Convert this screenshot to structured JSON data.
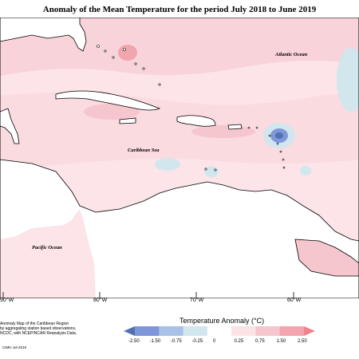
{
  "title": "Anomaly of the Mean Temperature for the period July 2018 to June 2019",
  "ocean_labels": {
    "atlantic": "Atlantic Ocean",
    "caribbean": "Caribbean Sea",
    "pacific": "Pacific Ocean"
  },
  "longitude_labels": [
    "90°W",
    "80°W",
    "70°W",
    "60°W"
  ],
  "credits": {
    "lines": [
      "Anomaly Map of the Caribbean Region",
      "by aggregating station based observations,",
      "NCDC, with NCEP/NCAR Reanalysis Data."
    ],
    "id": "CIMH Jul-2019"
  },
  "legend": {
    "title": "Temperature Anomaly (°C)",
    "ticks": [
      "-2.50",
      "-1.50",
      "-0.75",
      "-0.25",
      "0",
      "0.25",
      "0.75",
      "1.50",
      "2.50"
    ],
    "colors": [
      "#5470b0",
      "#7e97d9",
      "#a9c1e7",
      "#d2e6ee",
      "#ffffff",
      "#fbe2e5",
      "#f5c6cd",
      "#f2a5ae",
      "#f0808b"
    ]
  }
}
